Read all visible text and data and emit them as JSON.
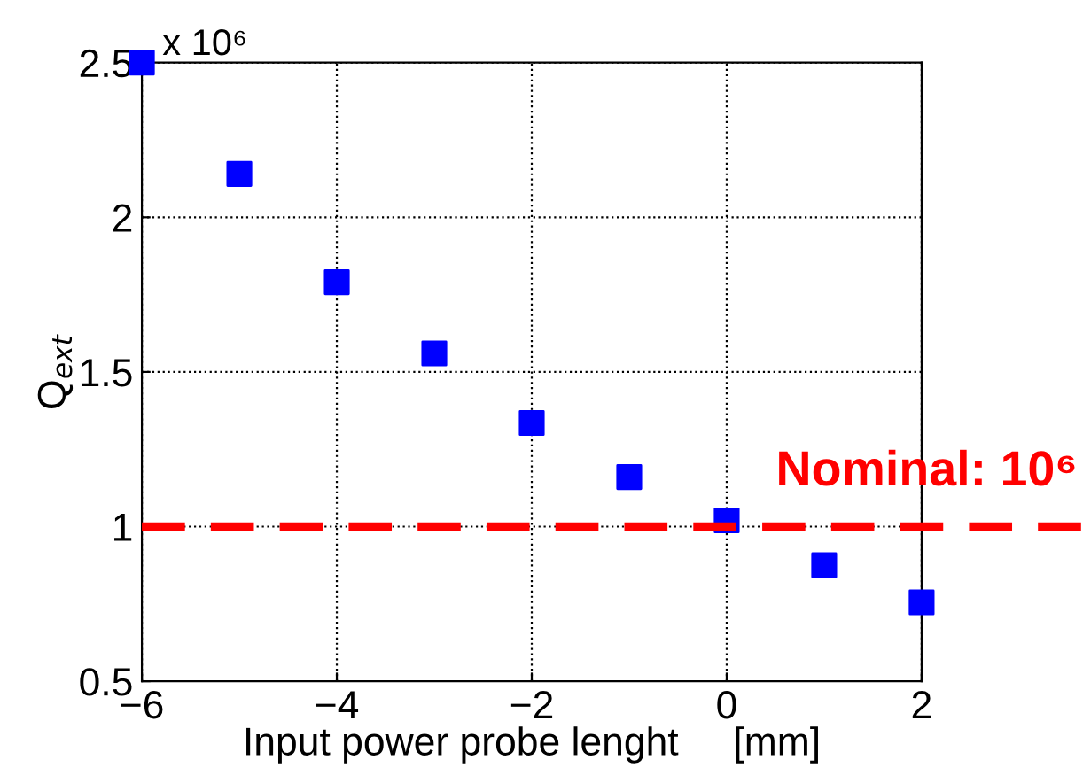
{
  "chart_data": {
    "type": "scatter",
    "xlabel": "Input power probe lenght     [mm]",
    "ylabel": "Q$_{ext}$",
    "x": [
      -6,
      -5,
      -4,
      -3,
      -2,
      -1,
      0,
      1,
      2
    ],
    "series": [
      {
        "color": "#0000ff",
        "values": [
          2.5,
          2.14,
          1.79,
          1.56,
          1.335,
          1.16,
          1.02,
          0.875,
          0.755
        ]
      }
    ],
    "xlim": [
      -6,
      2
    ],
    "xticks": [
      -6,
      -4,
      -2,
      0,
      2
    ],
    "ylim": [
      0.5,
      2.5
    ],
    "yticks": [
      0.5,
      1,
      1.5,
      2,
      2.5
    ],
    "grid": true,
    "marker": "square",
    "ref_lines": [
      {
        "axis": "y",
        "value": 1,
        "color": "#ff0000",
        "line_style": "dashed"
      }
    ],
    "annotations": [
      "x 10⁶",
      "Nominal: 10⁶"
    ]
  }
}
